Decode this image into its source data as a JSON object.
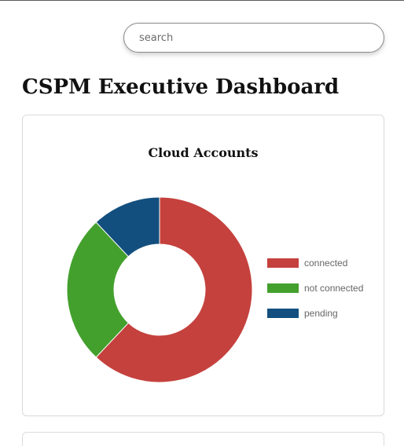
{
  "search": {
    "placeholder": "search",
    "value": ""
  },
  "page": {
    "title": "CSPM Executive Dashboard"
  },
  "colors": {
    "connected": "#c5413d",
    "not_connected": "#43a02d",
    "pending": "#134f7e"
  },
  "chart_data": {
    "type": "pie",
    "title": "Cloud Accounts",
    "categories": [
      "connected",
      "not connected",
      "pending"
    ],
    "values": [
      62,
      26,
      12
    ],
    "colors": [
      "#c5413d",
      "#43a02d",
      "#134f7e"
    ],
    "legend": "right",
    "donut": true
  }
}
